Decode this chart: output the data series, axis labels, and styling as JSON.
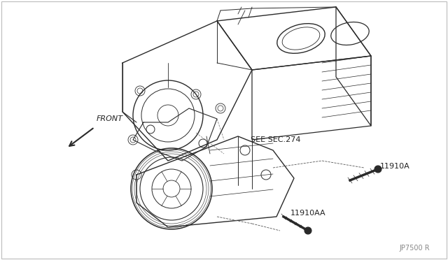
{
  "background_color": "#ffffff",
  "border_color": "#aaaaaa",
  "line_color": "#2a2a2a",
  "dashed_color": "#555555",
  "label_color": "#222222",
  "labels": {
    "front": "FRONT",
    "see_sec": "SEE SEC.274",
    "part1": "11910A",
    "part2": "11910AA",
    "ref": "JP7500 R"
  },
  "figsize": [
    6.4,
    3.72
  ],
  "dpi": 100
}
